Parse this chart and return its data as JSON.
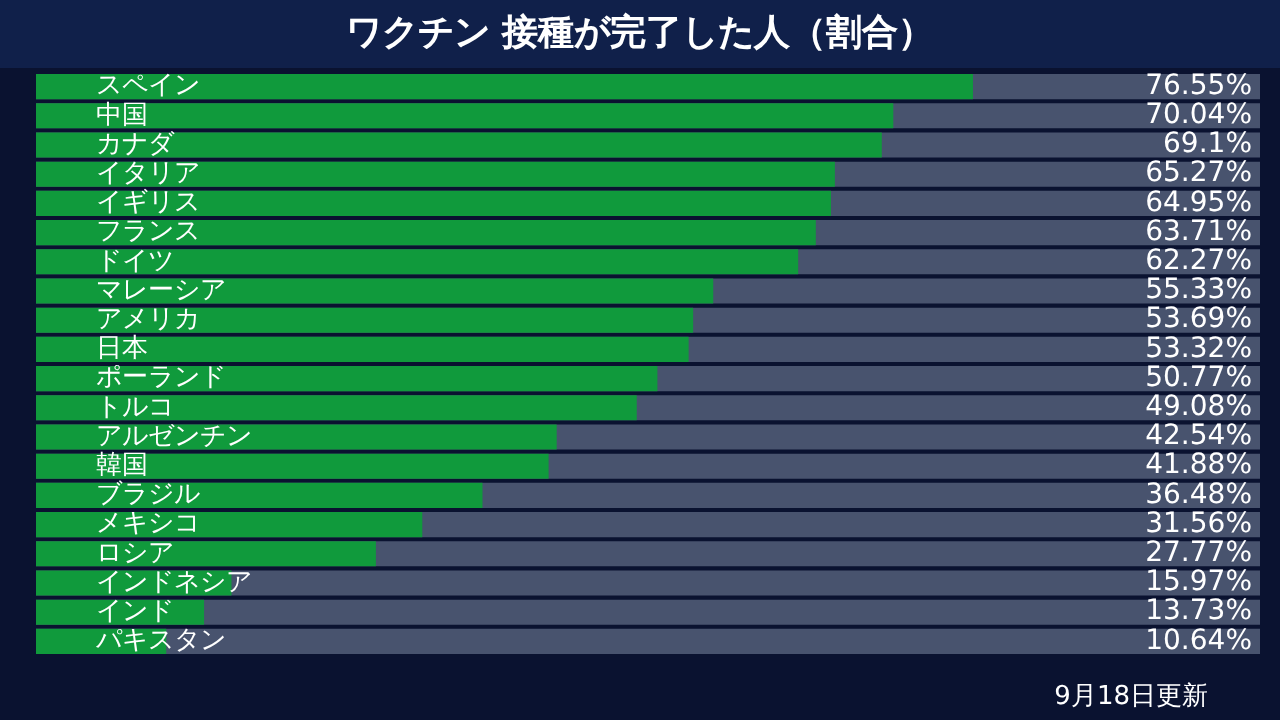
{
  "chart_data": {
    "type": "bar",
    "orientation": "horizontal",
    "title": "ワクチン 接種が完了した人（割合）",
    "categories": [
      "スペイン",
      "中国",
      "カナダ",
      "イタリア",
      "イギリス",
      "フランス",
      "ドイツ",
      "マレーシア",
      "アメリカ",
      "日本",
      "ポーランド",
      "トルコ",
      "アルゼンチン",
      "韓国",
      "ブラジル",
      "メキシコ",
      "ロシア",
      "インドネシア",
      "インド",
      "パキスタン"
    ],
    "values": [
      76.55,
      70.04,
      69.1,
      65.27,
      64.95,
      63.71,
      62.27,
      55.33,
      53.69,
      53.32,
      50.77,
      49.08,
      42.54,
      41.88,
      36.48,
      31.56,
      27.77,
      15.97,
      13.73,
      10.64
    ],
    "value_labels": [
      "76.55%",
      "70.04%",
      "69.1%",
      "65.27%",
      "64.95%",
      "63.71%",
      "62.27%",
      "55.33%",
      "53.69%",
      "53.32%",
      "50.77%",
      "49.08%",
      "42.54%",
      "41.88%",
      "36.48%",
      "31.56%",
      "27.77%",
      "15.97%",
      "13.73%",
      "10.64%"
    ],
    "color": "#109a3c",
    "xlim": [
      0,
      100
    ],
    "tick_labels": "y",
    "grid": false,
    "legend": false,
    "annotations": [
      "9月18日更新"
    ]
  }
}
